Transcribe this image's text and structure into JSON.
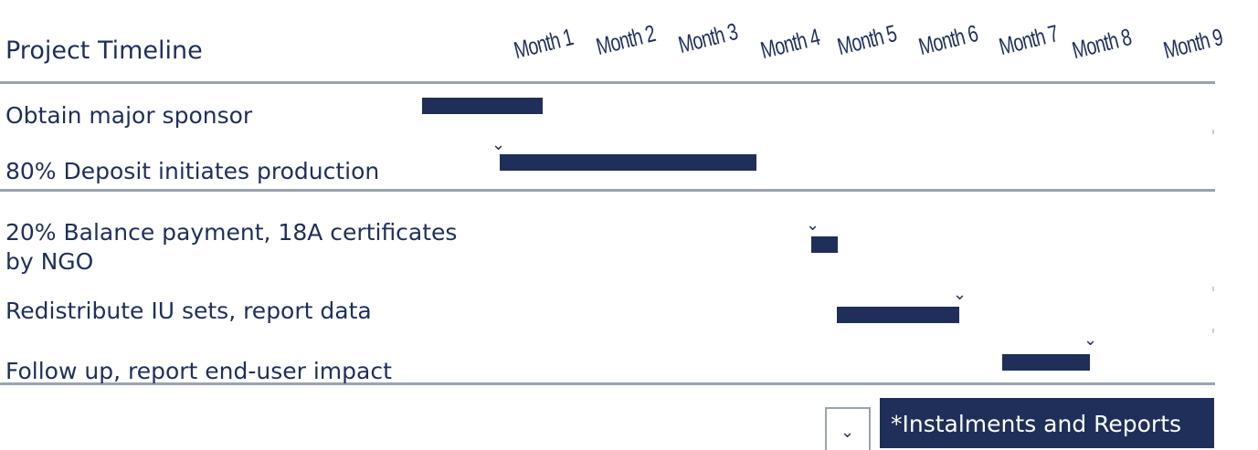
{
  "title": "Project Timeline",
  "months": [
    "Month 1",
    "Month 2",
    "Month 3",
    "Month 4",
    "Month 5",
    "Month 6",
    "Month 7",
    "Month 8",
    "Month 9"
  ],
  "tasks": [
    {
      "label": "Obtain major sponsor"
    },
    {
      "label": "80% Deposit initiates production"
    },
    {
      "label_line1": "20% Balance payment, 18A certificates",
      "label_line2": "by NGO"
    },
    {
      "label": "Redistribute IU sets, report data"
    },
    {
      "label": "Follow up, report end-user impact"
    }
  ],
  "legend": {
    "marker_icon": "chevron-down-icon",
    "label": "*Instalments and Reports"
  },
  "colors": {
    "bar": "#1f2f5a",
    "rule": "#9aa3ad",
    "text": "#1f2f5a"
  }
}
